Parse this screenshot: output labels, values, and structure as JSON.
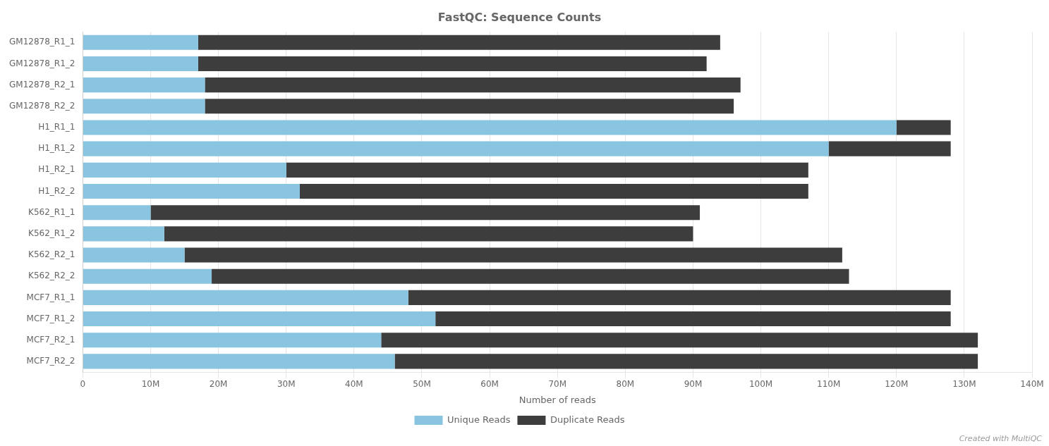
{
  "chart_data": {
    "type": "bar",
    "title": "FastQC: Sequence Counts",
    "xlabel": "Number of reads",
    "orientation": "horizontal",
    "stacked": true,
    "categories": [
      "GM12878_R1_1",
      "GM12878_R1_2",
      "GM12878_R2_1",
      "GM12878_R2_2",
      "H1_R1_1",
      "H1_R1_2",
      "H1_R2_1",
      "H1_R2_2",
      "K562_R1_1",
      "K562_R1_2",
      "K562_R2_1",
      "K562_R2_2",
      "MCF7_R1_1",
      "MCF7_R1_2",
      "MCF7_R2_1",
      "MCF7_R2_2"
    ],
    "series": [
      {
        "name": "Unique Reads",
        "color": "#89c4e1",
        "values": [
          17000000,
          17000000,
          18000000,
          18000000,
          120000000,
          110000000,
          30000000,
          32000000,
          10000000,
          12000000,
          15000000,
          19000000,
          48000000,
          52000000,
          44000000,
          46000000
        ]
      },
      {
        "name": "Duplicate Reads",
        "color": "#3d3d3d",
        "values": [
          77000000,
          75000000,
          79000000,
          78000000,
          8000000,
          18000000,
          77000000,
          75000000,
          81000000,
          78000000,
          97000000,
          94000000,
          80000000,
          76000000,
          88000000,
          86000000
        ]
      }
    ],
    "xlim": [
      0,
      140000000
    ],
    "xticks": [
      0,
      {
        "value": 10000000,
        "label": "10M"
      },
      {
        "value": 20000000,
        "label": "20M"
      },
      {
        "value": 30000000,
        "label": "30M"
      },
      {
        "value": 40000000,
        "label": "40M"
      },
      {
        "value": 50000000,
        "label": "50M"
      },
      {
        "value": 60000000,
        "label": "60M"
      },
      {
        "value": 70000000,
        "label": "70M"
      },
      {
        "value": 80000000,
        "label": "80M"
      },
      {
        "value": 90000000,
        "label": "90M"
      },
      {
        "value": 100000000,
        "label": "100M"
      },
      {
        "value": 110000000,
        "label": "110M"
      },
      {
        "value": 120000000,
        "label": "120M"
      },
      {
        "value": 130000000,
        "label": "130M"
      },
      {
        "value": 140000000,
        "label": "140M"
      }
    ],
    "grid": true,
    "legend": "bottom",
    "annotations": [
      "Created with MultiQC"
    ]
  }
}
